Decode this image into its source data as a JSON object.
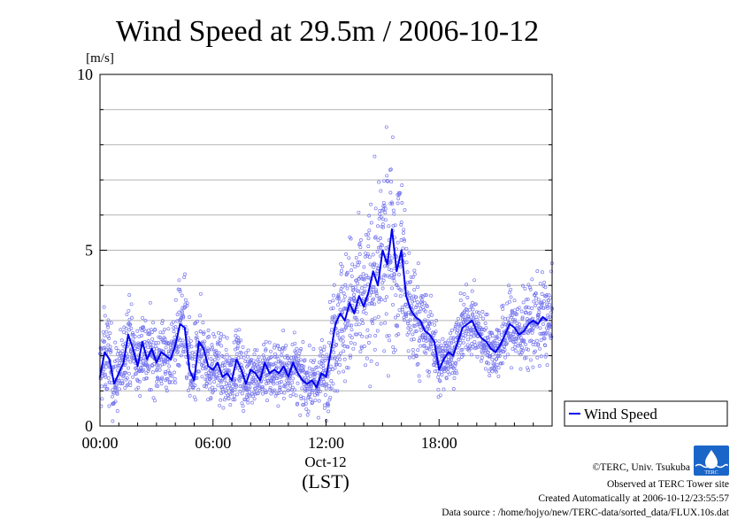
{
  "chart_data": {
    "type": "line",
    "title": "Wind Speed at 29.5m / 2006-10-12",
    "ylabel": "[m/s]",
    "xlabel": "(LST)",
    "date_label": "Oct-12",
    "ylim": [
      0,
      10
    ],
    "xlim": [
      0,
      24
    ],
    "yticks": [
      0,
      5,
      10
    ],
    "y_minor_step": 1,
    "xticks": [
      {
        "x": 0,
        "label": "00:00"
      },
      {
        "x": 6,
        "label": "06:00"
      },
      {
        "x": 12,
        "label": "12:00"
      },
      {
        "x": 18,
        "label": "18:00"
      }
    ],
    "grid": true,
    "legend_position": "outside-right-bottom",
    "series": [
      {
        "name": "Wind Speed",
        "color": "#0000ee",
        "scatter_color": "#7777ee",
        "x": [
          0.0,
          0.25,
          0.5,
          0.75,
          1.0,
          1.25,
          1.5,
          1.75,
          2.0,
          2.25,
          2.5,
          2.75,
          3.0,
          3.25,
          3.5,
          3.75,
          4.0,
          4.25,
          4.5,
          4.75,
          5.0,
          5.25,
          5.5,
          5.75,
          6.0,
          6.25,
          6.5,
          6.75,
          7.0,
          7.25,
          7.5,
          7.75,
          8.0,
          8.25,
          8.5,
          8.75,
          9.0,
          9.25,
          9.5,
          9.75,
          10.0,
          10.25,
          10.5,
          10.75,
          11.0,
          11.25,
          11.5,
          11.75,
          12.0,
          12.25,
          12.5,
          12.75,
          13.0,
          13.25,
          13.5,
          13.75,
          14.0,
          14.25,
          14.5,
          14.75,
          15.0,
          15.25,
          15.5,
          15.75,
          16.0,
          16.25,
          16.5,
          16.75,
          17.0,
          17.25,
          17.5,
          17.75,
          18.0,
          18.25,
          18.5,
          18.75,
          19.0,
          19.25,
          19.5,
          19.75,
          20.0,
          20.25,
          20.5,
          20.75,
          21.0,
          21.25,
          21.5,
          21.75,
          22.0,
          22.25,
          22.5,
          22.75,
          23.0,
          23.25,
          23.5,
          23.75
        ],
        "y": [
          1.4,
          2.1,
          1.9,
          1.2,
          1.5,
          1.8,
          2.6,
          2.2,
          1.7,
          2.4,
          1.9,
          2.2,
          1.8,
          2.1,
          2.0,
          1.9,
          2.3,
          2.9,
          2.8,
          1.6,
          1.3,
          2.4,
          2.2,
          1.7,
          1.6,
          1.8,
          1.4,
          1.5,
          1.3,
          1.9,
          1.6,
          1.2,
          1.6,
          1.5,
          1.3,
          1.8,
          1.5,
          1.6,
          1.5,
          1.7,
          1.4,
          1.8,
          1.5,
          1.3,
          1.2,
          1.3,
          1.1,
          1.5,
          1.4,
          2.1,
          2.9,
          3.2,
          3.0,
          3.5,
          3.2,
          3.7,
          3.4,
          3.8,
          4.4,
          4.0,
          5.0,
          4.6,
          5.6,
          4.4,
          5.0,
          3.7,
          3.3,
          3.1,
          3.0,
          2.7,
          2.6,
          2.4,
          1.6,
          1.9,
          2.1,
          2.0,
          2.4,
          2.8,
          2.9,
          3.0,
          2.7,
          2.5,
          2.4,
          2.2,
          2.1,
          2.3,
          2.6,
          2.9,
          2.8,
          2.6,
          2.7,
          2.9,
          3.0,
          2.9,
          3.1,
          3.0
        ],
        "scatter_spread": [
          0.8,
          0.8,
          0.8,
          0.7,
          0.6,
          0.7,
          0.8,
          0.7,
          0.6,
          0.8,
          0.7,
          0.7,
          0.6,
          0.7,
          0.6,
          0.6,
          0.7,
          0.9,
          0.9,
          0.8,
          0.8,
          0.8,
          0.7,
          0.7,
          0.6,
          0.6,
          0.6,
          0.6,
          0.5,
          0.7,
          0.6,
          0.5,
          0.6,
          0.6,
          0.5,
          0.6,
          0.6,
          0.6,
          0.6,
          0.6,
          0.5,
          0.6,
          0.6,
          0.5,
          0.5,
          0.5,
          0.5,
          0.6,
          0.7,
          0.9,
          1.1,
          1.2,
          1.2,
          1.3,
          1.2,
          1.3,
          1.3,
          1.4,
          1.6,
          1.6,
          1.8,
          1.8,
          1.9,
          1.6,
          1.6,
          1.3,
          1.1,
          1.0,
          0.9,
          0.8,
          0.7,
          0.6,
          0.6,
          0.5,
          0.5,
          0.5,
          0.5,
          0.6,
          0.6,
          0.6,
          0.6,
          0.5,
          0.5,
          0.5,
          0.5,
          0.6,
          0.6,
          0.7,
          0.7,
          0.7,
          0.7,
          0.8,
          0.8,
          0.8,
          0.8,
          0.8
        ]
      }
    ]
  },
  "footer": {
    "copyright": "©TERC, Univ. Tsukuba",
    "observed": "Observed at TERC Tower site",
    "created": "Created Automatically at 2006-10-12/23:55:57",
    "source": "Data source : /home/hojyo/new/TERC-data/sorted_data/FLUX.10s.dat",
    "logo_text": "TERC"
  }
}
